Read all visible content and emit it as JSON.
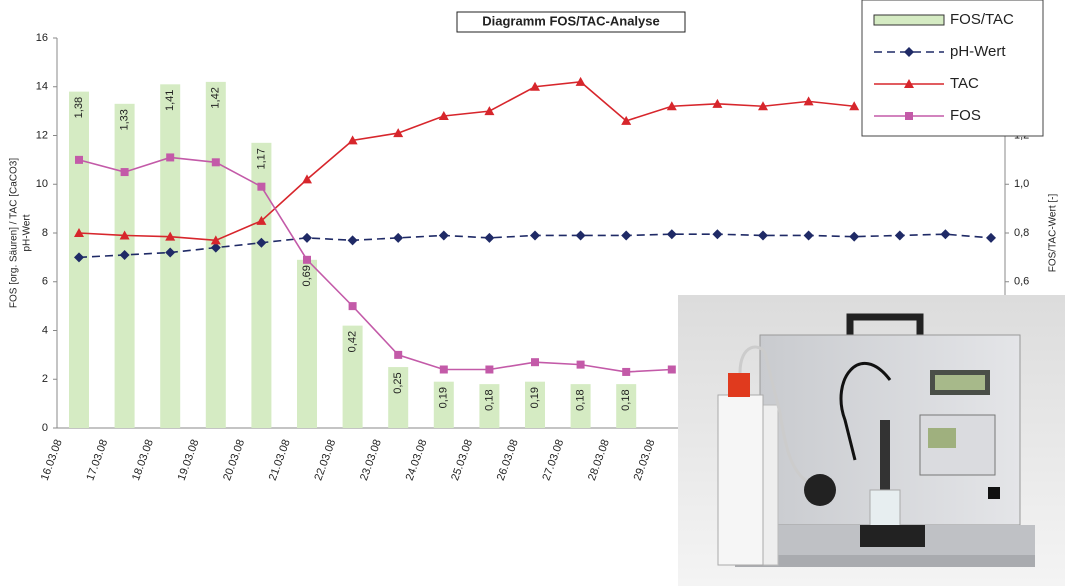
{
  "chart_data": {
    "type": "combo",
    "title": "Diagramm FOS/TAC-Analyse",
    "ylabel": [
      "FOS [org. Säuren] / TAC [CaCO3]",
      "pH-Wert"
    ],
    "y2label": "FOS/TAC-Wert [-]",
    "categories": [
      "16.03.08",
      "17.03.08",
      "18.03.08",
      "19.03.08",
      "20.03.08",
      "21.03.08",
      "22.03.08",
      "23.03.08",
      "24.03.08",
      "25.03.08",
      "26.03.08",
      "27.03.08",
      "28.03.08",
      "29.03.08",
      null,
      null,
      null,
      null,
      null,
      null,
      null
    ],
    "ylim": [
      0,
      16
    ],
    "yticks": [
      0,
      2,
      4,
      6,
      8,
      10,
      12,
      14,
      16
    ],
    "y2lim": [
      0,
      1.6
    ],
    "y2ticks": [
      {
        "value": 0.6,
        "label": "0,6"
      },
      {
        "value": 0.8,
        "label": "0,8"
      },
      {
        "value": 1.0,
        "label": "1,0"
      },
      {
        "value": 1.2,
        "label": "1,2"
      }
    ],
    "legend": "upper right",
    "series": [
      {
        "name": "FOS/TAC",
        "type": "bar",
        "axis": "y2",
        "color": "#d5ebc3",
        "values": [
          1.38,
          1.33,
          1.41,
          1.42,
          1.17,
          0.69,
          0.42,
          0.25,
          0.19,
          0.18,
          0.19,
          0.18,
          0.18,
          null,
          null,
          null,
          null,
          null,
          null,
          null,
          null
        ],
        "value_labels": [
          "1,38",
          "1,33",
          "1,41",
          "1,42",
          "1,17",
          "0,69",
          "0,42",
          "0,25",
          "0,19",
          "0,18",
          "0,19",
          "0,18",
          "0,18",
          null,
          null,
          null,
          null,
          null,
          null,
          null,
          null
        ]
      },
      {
        "name": "pH-Wert",
        "type": "line",
        "marker": "diamond",
        "dashed": true,
        "color": "#1f2a66",
        "values": [
          7.0,
          7.1,
          7.2,
          7.4,
          7.6,
          7.8,
          7.7,
          7.8,
          7.9,
          7.8,
          7.9,
          7.9,
          7.9,
          7.95,
          7.95,
          7.9,
          7.9,
          7.85,
          7.9,
          7.95,
          7.8
        ]
      },
      {
        "name": "TAC",
        "type": "line",
        "marker": "triangle",
        "dashed": false,
        "color": "#d7262c",
        "values": [
          8.0,
          7.9,
          7.85,
          7.7,
          8.5,
          10.2,
          11.8,
          12.1,
          12.8,
          13.0,
          14.0,
          14.2,
          12.6,
          13.2,
          13.3,
          13.2,
          13.4,
          13.2,
          null,
          null,
          null
        ]
      },
      {
        "name": "FOS",
        "type": "line",
        "marker": "square",
        "dashed": false,
        "color": "#c35aa8",
        "values": [
          11.0,
          10.5,
          11.1,
          10.9,
          9.9,
          6.9,
          5.0,
          3.0,
          2.4,
          2.4,
          2.7,
          2.6,
          2.3,
          2.4,
          null,
          null,
          null,
          null,
          null,
          null,
          null
        ]
      }
    ]
  }
}
